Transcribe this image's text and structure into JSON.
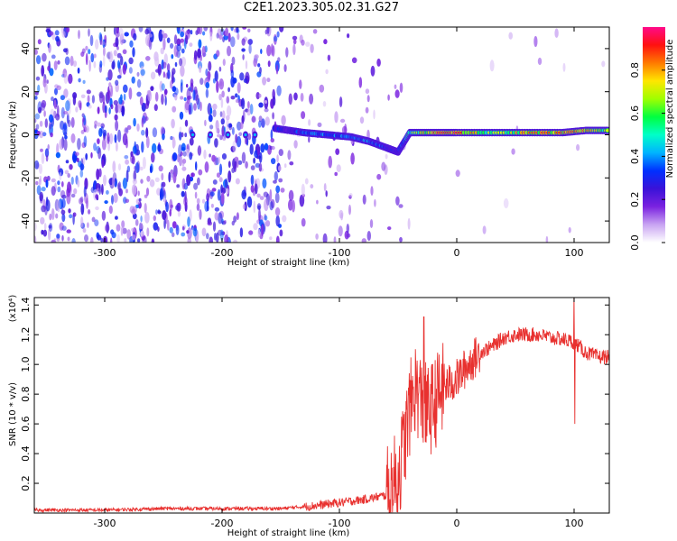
{
  "title": "C2E1.2023.305.02.31.G27",
  "colors": {
    "axis": "#000000",
    "snr_line": "#e8312f",
    "spectro_bg": "#ffffff",
    "colormap": [
      "#ffffff",
      "#c9a4f2",
      "#7a22e0",
      "#3a12d8",
      "#0030ff",
      "#00b4ff",
      "#00ffc8",
      "#00ff40",
      "#a0ff00",
      "#ffe600",
      "#ff7a00",
      "#ff1010",
      "#ff0a8a"
    ]
  },
  "chart_data": [
    {
      "type": "heatmap",
      "title": "",
      "xlabel": "Height of straight line (km)",
      "ylabel": "Frequency (Hz)",
      "xlim": [
        -360,
        130
      ],
      "ylim": [
        -50,
        50
      ],
      "xticks": [
        -300,
        -200,
        -100,
        0,
        100
      ],
      "yticks": [
        -40,
        -20,
        0,
        20,
        40
      ],
      "colorbar": {
        "label": "Normalized spectral amplitude",
        "range": [
          0.0,
          1.0
        ],
        "ticks": [
          0.0,
          0.2,
          0.4,
          0.6,
          0.8
        ]
      },
      "ridge": {
        "description_free": true,
        "x": [
          -155,
          -130,
          -110,
          -90,
          -75,
          -60,
          -50,
          -40,
          -20,
          0,
          30,
          60,
          90,
          110,
          130
        ],
        "freq": [
          3,
          1,
          0,
          -1,
          -3,
          -6,
          -8,
          1,
          1,
          1,
          1,
          1,
          1,
          2,
          2
        ],
        "amplitude": [
          0.25,
          0.3,
          0.4,
          0.35,
          0.4,
          0.3,
          0.25,
          0.55,
          0.8,
          0.85,
          0.6,
          0.75,
          0.8,
          0.75,
          0.6
        ]
      }
    },
    {
      "type": "line",
      "title": "",
      "xlabel": "Height of straight line (km)",
      "ylabel": "SNR (10 * v/v)",
      "y_multiplier": "(x10⁴)",
      "xlim": [
        -360,
        130
      ],
      "ylim": [
        0,
        1.45
      ],
      "xticks": [
        -300,
        -200,
        -100,
        0,
        100
      ],
      "yticks": [
        0.2,
        0.4,
        0.6,
        0.8,
        1.0,
        1.2,
        1.4
      ],
      "series": [
        {
          "x": [
            -360,
            -300,
            -250,
            -200,
            -150,
            -120,
            -100,
            -80,
            -60,
            -50,
            -45,
            -40,
            -35,
            -30,
            -25,
            -20,
            -15,
            -10,
            0,
            10,
            20,
            30,
            40,
            50,
            60,
            70,
            80,
            90,
            100,
            110,
            120,
            130
          ],
          "y": [
            0.02,
            0.02,
            0.03,
            0.03,
            0.03,
            0.05,
            0.07,
            0.09,
            0.12,
            0.25,
            0.45,
            0.7,
            0.85,
            0.75,
            0.68,
            0.72,
            0.8,
            0.85,
            0.9,
            1.0,
            1.08,
            1.12,
            1.18,
            1.2,
            1.2,
            1.2,
            1.18,
            1.17,
            1.15,
            1.08,
            1.05,
            1.05
          ],
          "spikes": [
            {
              "x": -28,
              "y": 1.32
            },
            {
              "x": 100,
              "y": 1.47
            },
            {
              "x": 100.5,
              "y": 0.6
            }
          ]
        }
      ]
    }
  ]
}
